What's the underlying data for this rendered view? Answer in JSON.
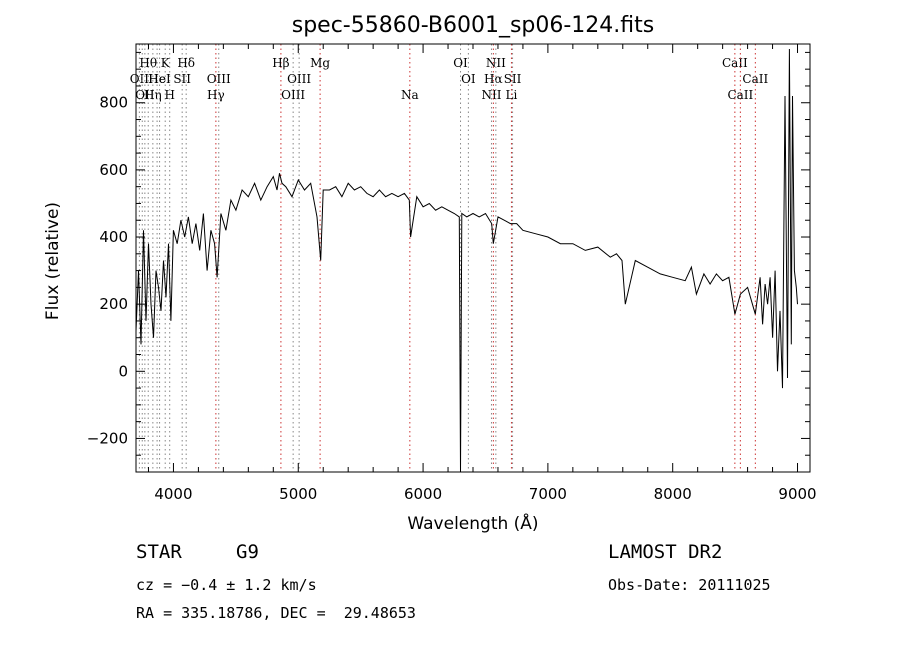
{
  "chart_data": {
    "type": "line",
    "title": "spec-55860-B6001_sp06-124.fits",
    "xlabel": "Wavelength (Å)",
    "ylabel": "Flux (relative)",
    "xlim": [
      3700,
      9100
    ],
    "ylim": [
      -300,
      975
    ],
    "xticks": [
      4000,
      5000,
      6000,
      7000,
      8000,
      9000
    ],
    "yticks": [
      -200,
      0,
      200,
      400,
      600,
      800
    ],
    "grid": false,
    "series": [
      {
        "x": [
          3700,
          3720,
          3740,
          3760,
          3780,
          3800,
          3820,
          3840,
          3860,
          3880,
          3900,
          3920,
          3940,
          3960,
          3980,
          4000,
          4030,
          4060,
          4090,
          4120,
          4150,
          4180,
          4210,
          4240,
          4270,
          4300,
          4330,
          4350,
          4380,
          4420,
          4460,
          4500,
          4550,
          4600,
          4650,
          4700,
          4750,
          4800,
          4830,
          4850,
          4870,
          4900,
          4950,
          5000,
          5050,
          5100,
          5150,
          5180,
          5200,
          5250,
          5300,
          5350,
          5400,
          5450,
          5500,
          5550,
          5600,
          5650,
          5700,
          5750,
          5800,
          5850,
          5890,
          5900,
          5950,
          6000,
          6050,
          6100,
          6150,
          6200,
          6250,
          6290,
          6300,
          6310,
          6350,
          6400,
          6450,
          6500,
          6550,
          6563,
          6600,
          6650,
          6700,
          6750,
          6800,
          6900,
          7000,
          7100,
          7200,
          7300,
          7400,
          7500,
          7550,
          7594,
          7620,
          7700,
          7800,
          7900,
          8000,
          8100,
          8150,
          8190,
          8250,
          8300,
          8350,
          8400,
          8450,
          8498,
          8542,
          8600,
          8662,
          8700,
          8720,
          8740,
          8760,
          8780,
          8800,
          8820,
          8840,
          8860,
          8880,
          8900,
          8920,
          8935,
          8950,
          8960,
          8975,
          8990,
          9000
        ],
        "y": [
          120,
          300,
          80,
          420,
          150,
          380,
          200,
          100,
          300,
          250,
          180,
          330,
          220,
          380,
          150,
          420,
          380,
          450,
          400,
          460,
          380,
          440,
          360,
          470,
          300,
          420,
          380,
          280,
          470,
          420,
          510,
          480,
          540,
          520,
          560,
          510,
          550,
          580,
          540,
          590,
          560,
          550,
          520,
          570,
          540,
          560,
          460,
          330,
          540,
          540,
          550,
          520,
          560,
          540,
          550,
          530,
          520,
          540,
          520,
          530,
          520,
          530,
          510,
          400,
          520,
          490,
          500,
          480,
          490,
          480,
          470,
          460,
          -300,
          470,
          460,
          470,
          460,
          470,
          440,
          380,
          460,
          450,
          440,
          440,
          420,
          410,
          400,
          380,
          380,
          360,
          370,
          340,
          350,
          330,
          200,
          330,
          310,
          290,
          280,
          270,
          310,
          230,
          290,
          260,
          290,
          270,
          280,
          170,
          230,
          250,
          170,
          280,
          140,
          260,
          200,
          280,
          100,
          300,
          0,
          180,
          -50,
          820,
          -20,
          960,
          80,
          820,
          300,
          250,
          200
        ]
      }
    ],
    "lines": [
      {
        "wl": 3727,
        "color": "#888888",
        "labels": [
          {
            "text": "OII",
            "row": 2
          }
        ]
      },
      {
        "wl": 3750,
        "color": "#888888",
        "labels": []
      },
      {
        "wl": 3771,
        "color": "#888888",
        "labels": [
          {
            "text": "OII",
            "row": 3
          }
        ]
      },
      {
        "wl": 3798,
        "color": "#888888",
        "labels": [
          {
            "text": "Hθ",
            "row": 1
          }
        ]
      },
      {
        "wl": 3835,
        "color": "#888888",
        "labels": [
          {
            "text": "Hη",
            "row": 3
          }
        ]
      },
      {
        "wl": 3869,
        "color": "#888888",
        "labels": [
          {
            "text": "He",
            "row": 2
          }
        ]
      },
      {
        "wl": 3889,
        "color": "#888888",
        "labels": [
          {
            "text": "HeI",
            "row": 2
          }
        ]
      },
      {
        "wl": 3934,
        "color": "#888888",
        "labels": [
          {
            "text": "K",
            "row": 1
          }
        ]
      },
      {
        "wl": 3970,
        "color": "#888888",
        "labels": [
          {
            "text": "H",
            "row": 3
          }
        ]
      },
      {
        "wl": 4070,
        "color": "#888888",
        "labels": [
          {
            "text": "SII",
            "row": 2
          }
        ]
      },
      {
        "wl": 4102,
        "color": "#888888",
        "labels": [
          {
            "text": "Hδ",
            "row": 1
          }
        ]
      },
      {
        "wl": 4340,
        "color": "#cc3333",
        "labels": [
          {
            "text": "Hγ",
            "row": 3
          }
        ]
      },
      {
        "wl": 4363,
        "color": "#888888",
        "labels": [
          {
            "text": "OIII",
            "row": 2
          }
        ]
      },
      {
        "wl": 4861,
        "color": "#cc3333",
        "labels": [
          {
            "text": "Hβ",
            "row": 1
          }
        ]
      },
      {
        "wl": 4959,
        "color": "#888888",
        "labels": [
          {
            "text": "OIII",
            "row": 3
          }
        ]
      },
      {
        "wl": 5007,
        "color": "#888888",
        "labels": [
          {
            "text": "OIII",
            "row": 2
          }
        ]
      },
      {
        "wl": 5175,
        "color": "#cc3333",
        "labels": [
          {
            "text": "Mg",
            "row": 1
          }
        ]
      },
      {
        "wl": 5894,
        "color": "#cc3333",
        "labels": [
          {
            "text": "Na",
            "row": 3
          }
        ]
      },
      {
        "wl": 6300,
        "color": "#888888",
        "labels": [
          {
            "text": "OI",
            "row": 1
          }
        ]
      },
      {
        "wl": 6363,
        "color": "#888888",
        "labels": [
          {
            "text": "OI",
            "row": 2
          }
        ]
      },
      {
        "wl": 6548,
        "color": "#888888",
        "labels": [
          {
            "text": "NII",
            "row": 3
          }
        ]
      },
      {
        "wl": 6563,
        "color": "#cc3333",
        "labels": [
          {
            "text": "Hα",
            "row": 2
          }
        ]
      },
      {
        "wl": 6583,
        "color": "#888888",
        "labels": [
          {
            "text": "NII",
            "row": 1
          }
        ]
      },
      {
        "wl": 6717,
        "color": "#888888",
        "labels": [
          {
            "text": "SII",
            "row": 2
          }
        ]
      },
      {
        "wl": 6708,
        "color": "#cc3333",
        "labels": [
          {
            "text": "Li",
            "row": 3
          }
        ]
      },
      {
        "wl": 8498,
        "color": "#cc3333",
        "labels": [
          {
            "text": "CaII",
            "row": 1
          }
        ]
      },
      {
        "wl": 8542,
        "color": "#cc3333",
        "labels": [
          {
            "text": "CaII",
            "row": 3
          }
        ]
      },
      {
        "wl": 8662,
        "color": "#cc3333",
        "labels": [
          {
            "text": "CaII",
            "row": 2
          }
        ]
      }
    ]
  },
  "info": {
    "class": "STAR",
    "subclass": "G9",
    "survey": "LAMOST DR2",
    "cz": "cz = −0.4 ± 1.2 km/s",
    "obs_date": "Obs-Date: 20111025",
    "coords": "RA = 335.18786, DEC =  29.48653"
  }
}
